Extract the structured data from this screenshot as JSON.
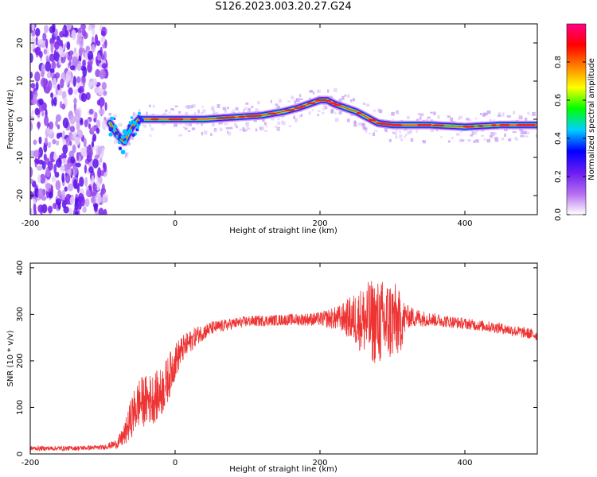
{
  "figure": {
    "title": "S126.2023.003.20.27.G24"
  },
  "chart_data": [
    {
      "type": "heatmap",
      "title": "",
      "xlabel": "Height of straight line (km)",
      "ylabel": "Frequency (Hz)",
      "xlim": [
        -200,
        500
      ],
      "ylim": [
        -25,
        25
      ],
      "xticks": [
        -200,
        0,
        200,
        400
      ],
      "yticks": [
        -20,
        -10,
        0,
        10,
        20
      ],
      "grid": false,
      "noise_region_x": [
        -200,
        -95
      ],
      "ridge": {
        "x": [
          -90,
          -80,
          -70,
          -60,
          -50,
          -40,
          -20,
          0,
          40,
          80,
          120,
          150,
          170,
          185,
          200,
          210,
          220,
          235,
          250,
          265,
          280,
          300,
          350,
          400,
          450,
          500
        ],
        "freq_hz": [
          -1,
          -4,
          -6,
          -2,
          0,
          0,
          0,
          0,
          0,
          0.5,
          1,
          2,
          3,
          4,
          5,
          5,
          4,
          3,
          2,
          0.5,
          -1,
          -1.5,
          -1.5,
          -2,
          -1.5,
          -1.5
        ]
      },
      "colorbar": {
        "label": "Normalized spectral amplitude",
        "ticks": [
          0.0,
          0.2,
          0.4,
          0.6,
          0.8
        ],
        "tick_labels": [
          "0.0",
          "0.2",
          "0.4",
          "0.6",
          "0.8"
        ],
        "range": [
          0,
          1
        ],
        "colors": [
          "#ffffff",
          "#b56cf0",
          "#6a1cf2",
          "#0000ff",
          "#00d0ff",
          "#00ff00",
          "#ffff00",
          "#ff8000",
          "#ff0000",
          "#ff0088"
        ]
      }
    },
    {
      "type": "line",
      "title": "",
      "xlabel": "Height of straight line (km)",
      "ylabel": "SNR (10 * v/v)",
      "xlim": [
        -200,
        500
      ],
      "ylim": [
        0,
        410
      ],
      "xticks": [
        -200,
        0,
        200,
        400
      ],
      "yticks": [
        0,
        100,
        200,
        300,
        400
      ],
      "grid": false,
      "series": [
        {
          "color": "#ee3333",
          "x": [
            -200,
            -150,
            -100,
            -80,
            -70,
            -60,
            -50,
            -40,
            -30,
            -20,
            -10,
            0,
            10,
            20,
            30,
            50,
            80,
            100,
            150,
            200,
            230,
            250,
            270,
            290,
            300,
            310,
            320,
            350,
            400,
            450,
            500
          ],
          "y": [
            12,
            12,
            14,
            22,
            40,
            80,
            110,
            115,
            120,
            130,
            160,
            200,
            225,
            240,
            255,
            270,
            280,
            285,
            288,
            290,
            292,
            290,
            285,
            280,
            290,
            280,
            295,
            290,
            280,
            270,
            255
          ],
          "noise_amp": [
            5,
            5,
            5,
            10,
            25,
            45,
            55,
            55,
            55,
            55,
            50,
            40,
            30,
            25,
            20,
            15,
            12,
            12,
            12,
            15,
            30,
            60,
            90,
            95,
            90,
            70,
            25,
            15,
            12,
            12,
            12
          ]
        }
      ]
    }
  ]
}
